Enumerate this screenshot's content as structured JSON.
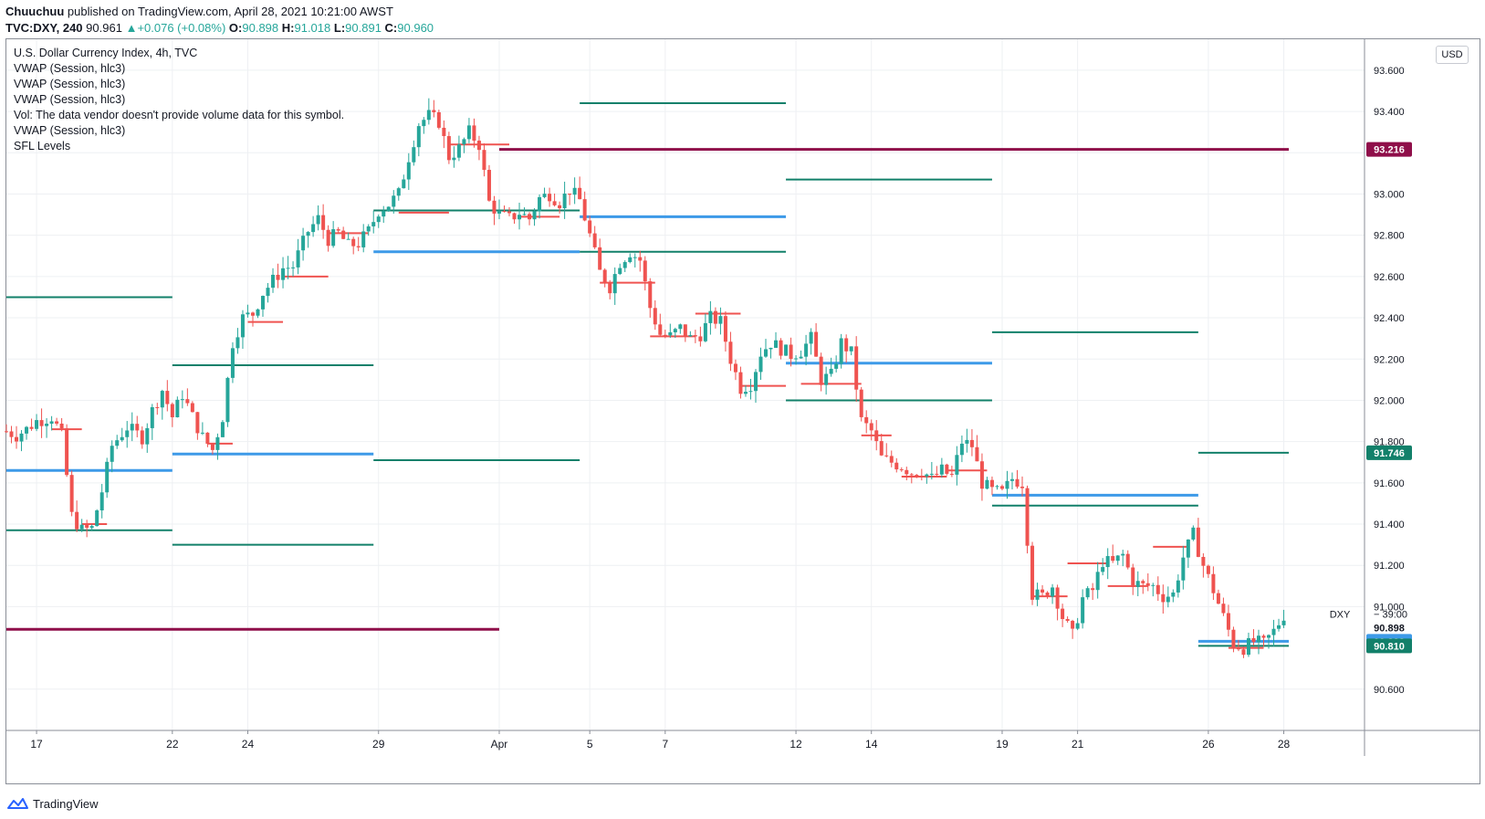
{
  "header": {
    "author": "Chuuchuu",
    "published_text": "published on TradingView.com, April 28, 2021 10:21:00 AWST",
    "symbol": "TVC:DXY, 240",
    "last": "90.961",
    "change_arrow": "▲",
    "change": "+0.076 (+0.08%)",
    "o_label": "O:",
    "o_value": "90.898",
    "h_label": "H:",
    "h_value": "91.018",
    "l_label": "L:",
    "l_value": "90.891",
    "c_label": "C:",
    "c_value": "90.960"
  },
  "legend": {
    "title": "U.S. Dollar Currency Index, 4h, TVC",
    "lines": [
      "VWAP (Session, hlc3)",
      "VWAP (Session, hlc3)",
      "VWAP (Session, hlc3)",
      "Vol: The data vendor doesn't provide volume data for this symbol.",
      "VWAP (Session, hlc3)",
      "SFL Levels"
    ]
  },
  "currency_badge": "USD",
  "footer": {
    "brand": "TradingView"
  },
  "colors": {
    "up": "#26a69a",
    "down": "#ef5350",
    "vwap_red": "#ef5350",
    "sfl_green": "#12806a",
    "sfl_blue": "#3d9ae8",
    "sfl_maroon": "#8f0f4a",
    "grid": "#eef0f3"
  },
  "chart_data": {
    "type": "candlestick",
    "title": "U.S. Dollar Currency Index, 4h, TVC",
    "ylim": [
      90.4,
      93.75
    ],
    "y_ticks": [
      "93.600",
      "93.400",
      "93.200",
      "93.000",
      "92.800",
      "92.600",
      "92.400",
      "92.200",
      "92.000",
      "91.800",
      "91.600",
      "91.400",
      "91.200",
      "91.000",
      "90.600"
    ],
    "x_ticks": [
      "17",
      "22",
      "24",
      "29",
      "Apr",
      "5",
      "7",
      "12",
      "14",
      "19",
      "21",
      "26",
      "28"
    ],
    "price_labels": [
      {
        "text": "93.216",
        "value": 93.216,
        "color": "#8f0f4a"
      },
      {
        "text": "91.746",
        "value": 91.746,
        "color": "#12806a"
      },
      {
        "text": "90.898",
        "value": 90.898,
        "color": "#ffffff"
      },
      {
        "text": "90.832",
        "value": 90.832,
        "color": "#3d9ae8"
      },
      {
        "text": "90.810",
        "value": 90.81,
        "color": "#12806a"
      }
    ],
    "countdown": {
      "symbol": "DXY",
      "text": "39:00"
    },
    "sfl_levels": [
      {
        "color": "green",
        "y": 92.5,
        "from": 0,
        "to": 33
      },
      {
        "color": "blue",
        "y": 91.66,
        "from": 0,
        "to": 33
      },
      {
        "color": "green",
        "y": 91.37,
        "from": 0,
        "to": 33
      },
      {
        "color": "maroon",
        "y": 90.89,
        "from": 0,
        "to": 98
      },
      {
        "color": "green",
        "y": 92.17,
        "from": 33,
        "to": 73
      },
      {
        "color": "blue",
        "y": 91.74,
        "from": 33,
        "to": 73
      },
      {
        "color": "green",
        "y": 91.3,
        "from": 33,
        "to": 73
      },
      {
        "color": "green",
        "y": 92.92,
        "from": 73,
        "to": 114
      },
      {
        "color": "blue",
        "y": 92.72,
        "from": 73,
        "to": 114
      },
      {
        "color": "green",
        "y": 91.71,
        "from": 73,
        "to": 114
      },
      {
        "color": "green",
        "y": 93.44,
        "from": 114,
        "to": 155
      },
      {
        "color": "blue",
        "y": 92.89,
        "from": 114,
        "to": 155
      },
      {
        "color": "green",
        "y": 92.72,
        "from": 114,
        "to": 155
      },
      {
        "color": "maroon",
        "y": 93.216,
        "from": 98,
        "to": 255
      },
      {
        "color": "green",
        "y": 93.07,
        "from": 155,
        "to": 196
      },
      {
        "color": "blue",
        "y": 92.18,
        "from": 155,
        "to": 196
      },
      {
        "color": "green",
        "y": 92.0,
        "from": 155,
        "to": 196
      },
      {
        "color": "green",
        "y": 92.33,
        "from": 196,
        "to": 237
      },
      {
        "color": "blue",
        "y": 91.54,
        "from": 196,
        "to": 237
      },
      {
        "color": "green",
        "y": 91.49,
        "from": 196,
        "to": 237
      },
      {
        "color": "green",
        "y": 91.746,
        "from": 237,
        "to": 255
      },
      {
        "color": "blue",
        "y": 90.832,
        "from": 237,
        "to": 255
      },
      {
        "color": "green",
        "y": 90.81,
        "from": 237,
        "to": 255
      }
    ],
    "vwap_segments": [
      {
        "from": 9,
        "to": 15,
        "y": 91.86
      },
      {
        "from": 15,
        "to": 20,
        "y": 91.4
      },
      {
        "from": 40,
        "to": 45,
        "y": 91.79
      },
      {
        "from": 48,
        "to": 55,
        "y": 92.38
      },
      {
        "from": 55,
        "to": 64,
        "y": 92.6
      },
      {
        "from": 64,
        "to": 72,
        "y": 92.81
      },
      {
        "from": 78,
        "to": 88,
        "y": 92.91
      },
      {
        "from": 88,
        "to": 100,
        "y": 93.24
      },
      {
        "from": 102,
        "to": 110,
        "y": 92.89
      },
      {
        "from": 118,
        "to": 129,
        "y": 92.57
      },
      {
        "from": 128,
        "to": 137,
        "y": 92.31
      },
      {
        "from": 137,
        "to": 146,
        "y": 92.42
      },
      {
        "from": 146,
        "to": 155,
        "y": 92.07
      },
      {
        "from": 158,
        "to": 170,
        "y": 92.08
      },
      {
        "from": 170,
        "to": 176,
        "y": 91.83
      },
      {
        "from": 178,
        "to": 187,
        "y": 91.63
      },
      {
        "from": 187,
        "to": 195,
        "y": 91.66
      },
      {
        "from": 204,
        "to": 211,
        "y": 91.05
      },
      {
        "from": 211,
        "to": 219,
        "y": 91.21
      },
      {
        "from": 219,
        "to": 227,
        "y": 91.1
      },
      {
        "from": 228,
        "to": 235,
        "y": 91.29
      },
      {
        "from": 243,
        "to": 250,
        "y": 90.8
      }
    ],
    "waypoints": [
      [
        0,
        91.85
      ],
      [
        2,
        91.83
      ],
      [
        4,
        91.86
      ],
      [
        6,
        91.9
      ],
      [
        9,
        91.92
      ],
      [
        11,
        91.83
      ],
      [
        13,
        91.44
      ],
      [
        15,
        91.37
      ],
      [
        17,
        91.38
      ],
      [
        19,
        91.56
      ],
      [
        21,
        91.78
      ],
      [
        24,
        91.87
      ],
      [
        27,
        91.82
      ],
      [
        29,
        91.95
      ],
      [
        31,
        92.05
      ],
      [
        33,
        91.92
      ],
      [
        35,
        92.03
      ],
      [
        37,
        91.92
      ],
      [
        39,
        91.82
      ],
      [
        41,
        91.76
      ],
      [
        43,
        91.92
      ],
      [
        45,
        92.28
      ],
      [
        47,
        92.4
      ],
      [
        49,
        92.42
      ],
      [
        51,
        92.52
      ],
      [
        53,
        92.58
      ],
      [
        55,
        92.64
      ],
      [
        57,
        92.65
      ],
      [
        60,
        92.82
      ],
      [
        62,
        92.88
      ],
      [
        64,
        92.78
      ],
      [
        66,
        92.81
      ],
      [
        68,
        92.75
      ],
      [
        70,
        92.76
      ],
      [
        72,
        92.82
      ],
      [
        74,
        92.92
      ],
      [
        76,
        92.95
      ],
      [
        78,
        93.0
      ],
      [
        80,
        93.18
      ],
      [
        82,
        93.34
      ],
      [
        84,
        93.38
      ],
      [
        86,
        93.35
      ],
      [
        88,
        93.18
      ],
      [
        90,
        93.22
      ],
      [
        92,
        93.3
      ],
      [
        94,
        93.24
      ],
      [
        96,
        92.96
      ],
      [
        98,
        92.9
      ],
      [
        100,
        92.88
      ],
      [
        102,
        92.91
      ],
      [
        104,
        92.88
      ],
      [
        106,
        92.98
      ],
      [
        108,
        93.0
      ],
      [
        110,
        92.96
      ],
      [
        112,
        93.02
      ],
      [
        114,
        92.97
      ],
      [
        116,
        92.8
      ],
      [
        118,
        92.62
      ],
      [
        120,
        92.55
      ],
      [
        122,
        92.67
      ],
      [
        124,
        92.72
      ],
      [
        126,
        92.68
      ],
      [
        128,
        92.45
      ],
      [
        130,
        92.32
      ],
      [
        132,
        92.31
      ],
      [
        134,
        92.35
      ],
      [
        136,
        92.3
      ],
      [
        138,
        92.32
      ],
      [
        140,
        92.4
      ],
      [
        142,
        92.38
      ],
      [
        144,
        92.2
      ],
      [
        146,
        92.06
      ],
      [
        148,
        92.08
      ],
      [
        150,
        92.23
      ],
      [
        152,
        92.28
      ],
      [
        154,
        92.25
      ],
      [
        156,
        92.22
      ],
      [
        158,
        92.24
      ],
      [
        160,
        92.3
      ],
      [
        162,
        92.1
      ],
      [
        164,
        92.12
      ],
      [
        166,
        92.28
      ],
      [
        168,
        92.23
      ],
      [
        170,
        91.9
      ],
      [
        172,
        91.85
      ],
      [
        174,
        91.72
      ],
      [
        176,
        91.7
      ],
      [
        178,
        91.68
      ],
      [
        180,
        91.65
      ],
      [
        182,
        91.66
      ],
      [
        184,
        91.62
      ],
      [
        186,
        91.66
      ],
      [
        188,
        91.63
      ],
      [
        190,
        91.8
      ],
      [
        192,
        91.78
      ],
      [
        194,
        91.6
      ],
      [
        196,
        91.56
      ],
      [
        198,
        91.55
      ],
      [
        200,
        91.62
      ],
      [
        202,
        91.6
      ],
      [
        204,
        91.06
      ],
      [
        206,
        91.05
      ],
      [
        208,
        91.1
      ],
      [
        210,
        90.95
      ],
      [
        212,
        90.86
      ],
      [
        214,
        91.04
      ],
      [
        216,
        91.08
      ],
      [
        218,
        91.22
      ],
      [
        220,
        91.21
      ],
      [
        222,
        91.25
      ],
      [
        224,
        91.12
      ],
      [
        226,
        91.1
      ],
      [
        228,
        91.1
      ],
      [
        230,
        91.05
      ],
      [
        232,
        91.06
      ],
      [
        234,
        91.24
      ],
      [
        236,
        91.35
      ],
      [
        238,
        91.2
      ],
      [
        240,
        91.08
      ],
      [
        242,
        90.95
      ],
      [
        244,
        90.82
      ],
      [
        246,
        90.8
      ],
      [
        248,
        90.83
      ],
      [
        250,
        90.82
      ],
      [
        252,
        90.88
      ],
      [
        254,
        90.96
      ]
    ]
  }
}
